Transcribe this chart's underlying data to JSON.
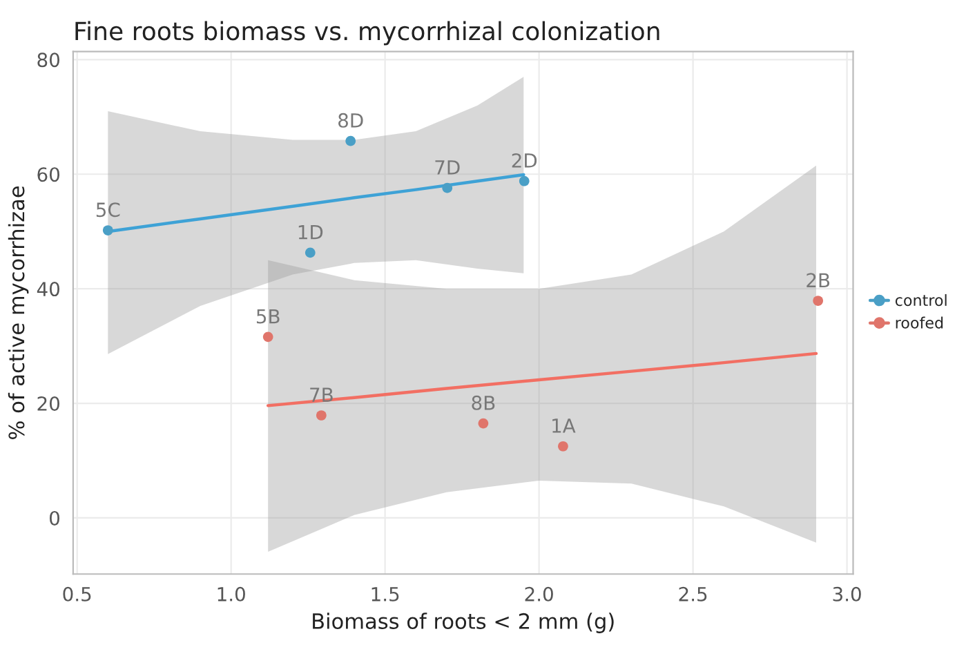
{
  "chart_data": {
    "type": "scatter",
    "title": "Fine roots biomass vs. mycorrhizal colonization",
    "xlabel": "Biomass of roots < 2 mm (g)",
    "ylabel": "% of active mycorrhizae",
    "series": [
      {
        "name": "control",
        "marker": "circle",
        "color": "#4a9fc6",
        "x": [
          0.6,
          1.257,
          1.388,
          1.702,
          1.952
        ],
        "values": [
          50.2,
          46.3,
          65.8,
          57.6,
          58.8
        ]
      },
      {
        "name": "roofed",
        "marker": "circle",
        "color": "#e0756b",
        "x": [
          1.12,
          1.293,
          1.819,
          2.078,
          2.906
        ],
        "values": [
          31.6,
          17.9,
          16.5,
          12.5,
          37.9
        ]
      },
      {
        "type": "line",
        "marker": "none",
        "color": "#3ea2d6",
        "x": [
          0.6,
          0.9,
          1.2,
          1.4,
          1.6,
          1.8,
          1.95
        ],
        "values": [
          50.0,
          52.2,
          54.4,
          55.9,
          57.3,
          58.8,
          59.9
        ],
        "upper": [
          71,
          67.5,
          66,
          66,
          67.5,
          72,
          77
        ],
        "lower": [
          28.6,
          37,
          42.5,
          44.5,
          45,
          43.5,
          42.7
        ]
      },
      {
        "type": "line",
        "marker": "none",
        "color": "#f26f63",
        "x": [
          1.12,
          1.4,
          1.7,
          2.0,
          2.3,
          2.6,
          2.9
        ],
        "values": [
          19.6,
          21.0,
          22.6,
          24.1,
          25.6,
          27.1,
          28.7
        ],
        "upper": [
          45,
          41.5,
          40,
          40,
          42.5,
          50,
          61.5
        ],
        "lower": [
          -5.9,
          0.5,
          4.5,
          6.5,
          6,
          2,
          -4.3
        ]
      }
    ],
    "annotations": [
      {
        "text": "5C",
        "x": 0.6,
        "y": 50.2
      },
      {
        "text": "1D",
        "x": 1.257,
        "y": 46.3
      },
      {
        "text": "8D",
        "x": 1.388,
        "y": 65.8
      },
      {
        "text": "7D",
        "x": 1.702,
        "y": 57.6
      },
      {
        "text": "2D",
        "x": 1.952,
        "y": 58.8
      },
      {
        "text": "5B",
        "x": 1.12,
        "y": 31.6
      },
      {
        "text": "7B",
        "x": 1.293,
        "y": 17.9
      },
      {
        "text": "8B",
        "x": 1.819,
        "y": 16.5
      },
      {
        "text": "1A",
        "x": 2.078,
        "y": 12.5
      },
      {
        "text": "2B",
        "x": 2.906,
        "y": 37.9
      }
    ],
    "xlim": [
      0.487,
      3.02
    ],
    "ylim": [
      -9.8,
      81.4
    ],
    "xticks": [
      {
        "value": 0.5,
        "label": "0.5"
      },
      {
        "value": 1.0,
        "label": "1.0"
      },
      {
        "value": 1.5,
        "label": "1.5"
      },
      {
        "value": 2.0,
        "label": "2.0"
      },
      {
        "value": 2.5,
        "label": "2.5"
      },
      {
        "value": 3.0,
        "label": "3.0"
      }
    ],
    "yticks": [
      0,
      20,
      40,
      60,
      80
    ],
    "grid": true,
    "legend": "right"
  }
}
